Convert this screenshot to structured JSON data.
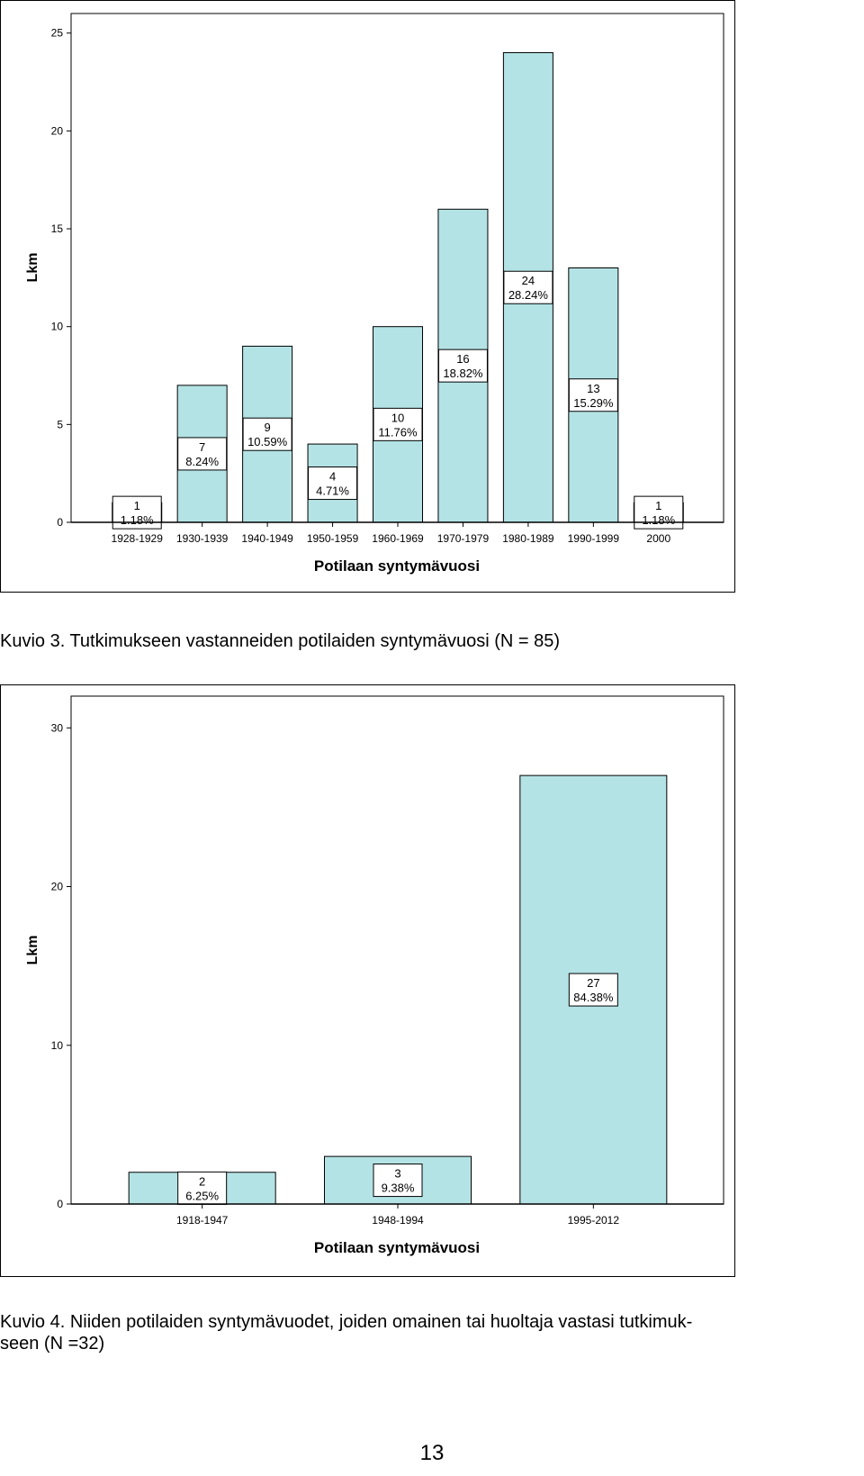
{
  "figure1": {
    "caption": "Kuvio 3. Tutkimukseen vastanneiden potilaiden syntymävuosi (N = 85)",
    "chart_data": {
      "type": "bar",
      "categories": [
        "1928-1929",
        "1930-1939",
        "1940-1949",
        "1950-1959",
        "1960-1969",
        "1970-1979",
        "1980-1989",
        "1990-1999",
        "2000"
      ],
      "values": [
        1,
        7,
        9,
        4,
        10,
        16,
        24,
        13,
        1
      ],
      "labels_count": [
        "1",
        "7",
        "9",
        "4",
        "10",
        "16",
        "24",
        "13",
        "1"
      ],
      "labels_percent": [
        "1.18%",
        "8.24%",
        "10.59%",
        "4.71%",
        "11.76%",
        "18.82%",
        "28.24%",
        "15.29%",
        "1.18%"
      ],
      "xlabel": "Potilaan syntymävuosi",
      "ylabel": "Lkm",
      "ylim": [
        0,
        26
      ],
      "yticks": [
        "0",
        "5",
        "10",
        "15",
        "20",
        "25"
      ],
      "grid": false,
      "bar_color": "#b4e3e5"
    }
  },
  "figure2": {
    "caption": "Kuvio 4. Niiden potilaiden syntymävuodet, joiden omainen tai huoltaja vastasi tutkimuk-seen (N =32)",
    "caption_line1": "Kuvio 4. Niiden potilaiden syntymävuodet, joiden omainen tai huoltaja vastasi tutkimuk-",
    "caption_line2": "seen (N =32)",
    "chart_data": {
      "type": "bar",
      "categories": [
        "1918-1947",
        "1948-1994",
        "1995-2012"
      ],
      "values": [
        2,
        3,
        27
      ],
      "labels_count": [
        "2",
        "3",
        "27"
      ],
      "labels_percent": [
        "6.25%",
        "9.38%",
        "84.38%"
      ],
      "xlabel": "Potilaan syntymävuosi",
      "ylabel": "Lkm",
      "ylim": [
        0,
        32
      ],
      "yticks": [
        "0",
        "10",
        "20",
        "30"
      ],
      "grid": false,
      "bar_color": "#b4e3e5"
    }
  },
  "page_number": "13"
}
